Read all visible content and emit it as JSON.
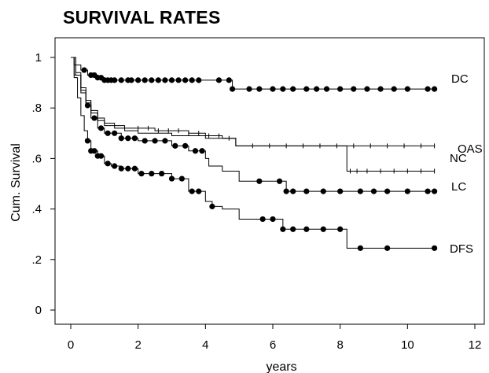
{
  "chart_data": {
    "type": "line",
    "title": "SURVIVAL RATES",
    "xlabel": "years",
    "ylabel": "Cum. Survival",
    "xlim": [
      0,
      12
    ],
    "ylim": [
      0,
      1
    ],
    "xticks": [
      "0",
      "2",
      "4",
      "6",
      "8",
      "10",
      "12"
    ],
    "yticks": [
      "0",
      ".2",
      ".4",
      ".6",
      ".8",
      "1"
    ],
    "grid": false,
    "legend": "series labels at right end of curves",
    "series": [
      {
        "name": "DC",
        "step_x": [
          0,
          0.1,
          0.3,
          0.5,
          0.8,
          1.0,
          4.8,
          10.8
        ],
        "step_y": [
          1.0,
          0.97,
          0.95,
          0.93,
          0.92,
          0.91,
          0.875,
          0.875
        ],
        "censor_x": [
          0.4,
          0.6,
          0.7,
          0.8,
          0.9,
          1.0,
          1.1,
          1.2,
          1.3,
          1.5,
          1.7,
          1.8,
          2.0,
          2.2,
          2.4,
          2.6,
          2.8,
          3.0,
          3.2,
          3.4,
          3.6,
          3.8,
          4.4,
          4.7,
          4.8,
          5.3,
          5.6,
          6.0,
          6.3,
          6.6,
          7.0,
          7.3,
          7.6,
          8.0,
          8.4,
          8.8,
          9.2,
          9.6,
          10.0,
          10.6,
          10.8
        ]
      },
      {
        "name": "OAS",
        "step_x": [
          0,
          0.15,
          0.3,
          0.45,
          0.6,
          0.8,
          1.0,
          1.3,
          1.6,
          2.0,
          2.5,
          3.0,
          3.5,
          4.0,
          4.5,
          4.9,
          10.8
        ],
        "step_y": [
          1.0,
          0.94,
          0.88,
          0.83,
          0.79,
          0.76,
          0.74,
          0.73,
          0.72,
          0.72,
          0.71,
          0.71,
          0.7,
          0.69,
          0.68,
          0.65,
          0.65
        ],
        "censor_x": [
          2.0,
          2.3,
          2.6,
          2.9,
          3.2,
          3.5,
          3.8,
          4.1,
          4.4,
          4.7,
          5.4,
          5.9,
          6.4,
          6.9,
          7.4,
          7.9,
          8.4,
          8.9,
          9.4,
          9.9,
          10.4,
          10.8
        ]
      },
      {
        "name": "NC",
        "step_x": [
          0,
          0.15,
          0.3,
          0.45,
          0.6,
          0.8,
          1.0,
          1.3,
          1.6,
          2.0,
          2.5,
          3.0,
          3.5,
          4.0,
          4.5,
          4.9,
          8.2,
          10.8
        ],
        "step_y": [
          1.0,
          0.93,
          0.87,
          0.82,
          0.78,
          0.75,
          0.73,
          0.72,
          0.71,
          0.7,
          0.7,
          0.69,
          0.69,
          0.68,
          0.68,
          0.65,
          0.55,
          0.55
        ],
        "censor_x": [
          8.3,
          8.5,
          8.8,
          9.2,
          9.6,
          10.0,
          10.4,
          10.8
        ]
      },
      {
        "name": "LC",
        "step_x": [
          0,
          0.1,
          0.3,
          0.45,
          0.6,
          0.8,
          1.0,
          1.5,
          2.0,
          3.0,
          3.5,
          4.0,
          4.1,
          4.5,
          5.0,
          6.0,
          6.4,
          10.8
        ],
        "step_y": [
          1.0,
          0.93,
          0.86,
          0.81,
          0.76,
          0.72,
          0.7,
          0.68,
          0.67,
          0.65,
          0.63,
          0.6,
          0.57,
          0.55,
          0.51,
          0.51,
          0.47,
          0.47
        ],
        "censor_x": [
          0.5,
          0.7,
          0.9,
          1.1,
          1.3,
          1.5,
          1.7,
          1.9,
          2.2,
          2.5,
          2.8,
          3.1,
          3.4,
          3.7,
          3.9,
          5.6,
          6.2,
          6.4,
          6.6,
          7.0,
          7.5,
          8.0,
          8.6,
          9.0,
          9.4,
          10.0,
          10.6,
          10.8
        ]
      },
      {
        "name": "DFS",
        "step_x": [
          0,
          0.1,
          0.2,
          0.3,
          0.4,
          0.5,
          0.6,
          0.8,
          1.0,
          1.2,
          1.5,
          2.0,
          3.0,
          3.5,
          4.0,
          4.2,
          4.5,
          5.0,
          6.0,
          6.3,
          8.2,
          10.8
        ],
        "step_y": [
          1.0,
          0.92,
          0.84,
          0.77,
          0.71,
          0.67,
          0.63,
          0.61,
          0.58,
          0.57,
          0.56,
          0.54,
          0.52,
          0.47,
          0.43,
          0.41,
          0.4,
          0.36,
          0.36,
          0.32,
          0.245,
          0.245
        ],
        "censor_x": [
          0.5,
          0.6,
          0.7,
          0.8,
          0.9,
          1.1,
          1.3,
          1.5,
          1.7,
          1.9,
          2.1,
          2.4,
          2.7,
          3.0,
          3.3,
          3.6,
          3.8,
          4.2,
          5.7,
          6.0,
          6.3,
          6.6,
          7.0,
          7.5,
          8.0,
          8.6,
          9.4,
          10.8
        ]
      }
    ]
  }
}
